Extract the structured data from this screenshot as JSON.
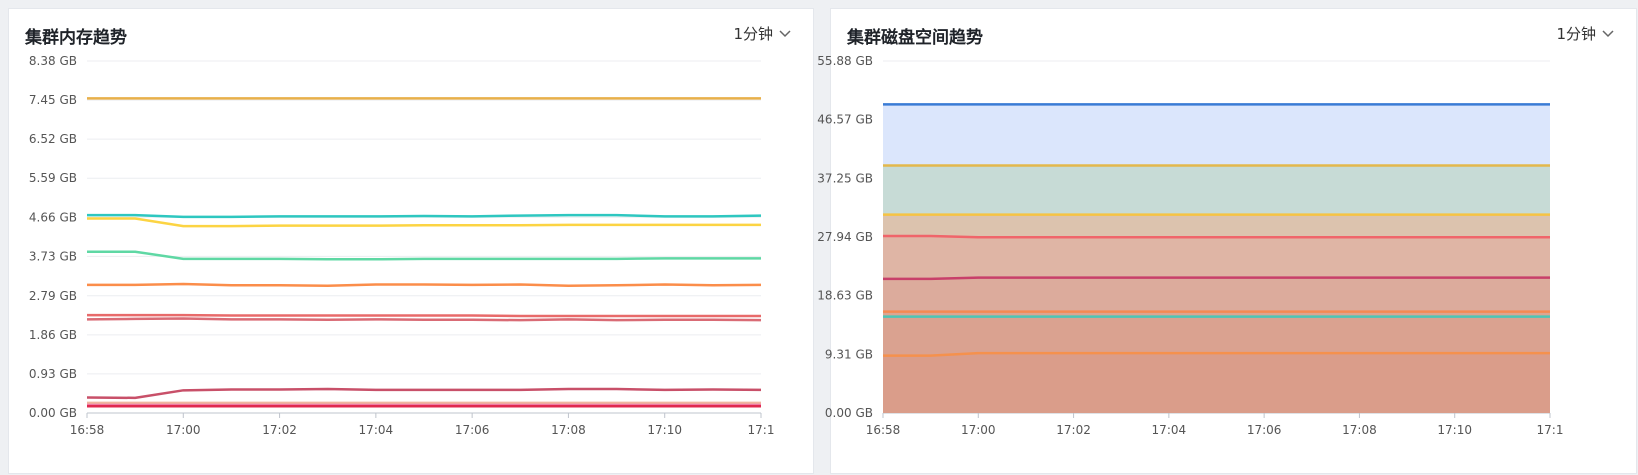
{
  "panels": [
    {
      "title": "集群内存趋势",
      "interval": "1分钟"
    },
    {
      "title": "集群磁盘空间趋势",
      "interval": "1分钟"
    }
  ],
  "chart_data": [
    {
      "type": "line",
      "title": "集群内存趋势",
      "ylim": [
        0,
        8.38
      ],
      "y_ticks": [
        "0.00 GB",
        "0.93 GB",
        "1.86 GB",
        "2.79 GB",
        "3.73 GB",
        "4.66 GB",
        "5.59 GB",
        "6.52 GB",
        "7.45 GB",
        "8.38 GB"
      ],
      "x_ticks": [
        "16:58",
        "17:00",
        "17:02",
        "17:04",
        "17:06",
        "17:08",
        "17:10",
        "17:1"
      ],
      "x_minutes": [
        0,
        1,
        2,
        3,
        4,
        5,
        6,
        7,
        8,
        9,
        10,
        11,
        12,
        13,
        14
      ],
      "grid": true,
      "series": [
        {
          "color": "#e8b04a",
          "values": [
            7.49,
            7.49,
            7.49,
            7.49,
            7.49,
            7.49,
            7.49,
            7.49,
            7.49,
            7.49,
            7.49,
            7.49,
            7.49,
            7.49,
            7.49
          ]
        },
        {
          "color": "#2ec7c0",
          "values": [
            4.71,
            4.71,
            4.67,
            4.67,
            4.68,
            4.68,
            4.68,
            4.69,
            4.68,
            4.7,
            4.71,
            4.71,
            4.68,
            4.68,
            4.7
          ]
        },
        {
          "color": "#fcd443",
          "values": [
            4.63,
            4.63,
            4.45,
            4.45,
            4.46,
            4.46,
            4.46,
            4.47,
            4.47,
            4.47,
            4.48,
            4.48,
            4.48,
            4.48,
            4.48
          ]
        },
        {
          "color": "#5fd8a4",
          "values": [
            3.84,
            3.84,
            3.67,
            3.67,
            3.67,
            3.66,
            3.66,
            3.67,
            3.67,
            3.67,
            3.67,
            3.67,
            3.68,
            3.68,
            3.68
          ]
        },
        {
          "color": "#fb8d4a",
          "values": [
            3.05,
            3.05,
            3.07,
            3.04,
            3.04,
            3.03,
            3.06,
            3.06,
            3.05,
            3.06,
            3.03,
            3.04,
            3.06,
            3.04,
            3.05
          ]
        },
        {
          "color": "#e86a6a",
          "values": [
            2.33,
            2.33,
            2.33,
            2.32,
            2.32,
            2.32,
            2.32,
            2.32,
            2.32,
            2.31,
            2.31,
            2.31,
            2.31,
            2.31,
            2.31
          ]
        },
        {
          "color": "#d96b75",
          "values": [
            2.23,
            2.24,
            2.25,
            2.23,
            2.23,
            2.22,
            2.23,
            2.22,
            2.22,
            2.21,
            2.23,
            2.21,
            2.22,
            2.22,
            2.21
          ]
        },
        {
          "color": "#c85069",
          "values": [
            0.37,
            0.36,
            0.54,
            0.56,
            0.56,
            0.57,
            0.55,
            0.55,
            0.55,
            0.55,
            0.57,
            0.57,
            0.55,
            0.56,
            0.55
          ]
        },
        {
          "color": "#f0b6a0",
          "values": [
            0.24,
            0.24,
            0.24,
            0.24,
            0.24,
            0.24,
            0.24,
            0.24,
            0.24,
            0.24,
            0.24,
            0.24,
            0.24,
            0.24,
            0.24
          ]
        },
        {
          "color": "#f07ba6",
          "values": [
            0.19,
            0.19,
            0.19,
            0.19,
            0.19,
            0.19,
            0.19,
            0.19,
            0.19,
            0.19,
            0.19,
            0.19,
            0.19,
            0.19,
            0.19
          ]
        },
        {
          "color": "#e0294f",
          "values": [
            0.16,
            0.16,
            0.16,
            0.16,
            0.16,
            0.16,
            0.16,
            0.16,
            0.16,
            0.16,
            0.16,
            0.16,
            0.16,
            0.16,
            0.16
          ]
        }
      ]
    },
    {
      "type": "area",
      "title": "集群磁盘空间趋势",
      "ylim": [
        0,
        55.88
      ],
      "y_ticks": [
        "0.00 GB",
        "9.31 GB",
        "18.63 GB",
        "27.94 GB",
        "37.25 GB",
        "46.57 GB",
        "55.88 GB"
      ],
      "x_ticks": [
        "16:58",
        "17:00",
        "17:02",
        "17:04",
        "17:06",
        "17:08",
        "17:10",
        "17:1"
      ],
      "x_minutes": [
        0,
        1,
        2,
        3,
        4,
        5,
        6,
        7,
        8,
        9,
        10,
        11,
        12,
        13,
        14
      ],
      "grid": true,
      "series": [
        {
          "color": "#3a7bd5",
          "fill": "#dbe6fc",
          "values": [
            49.0,
            49.0,
            49.0,
            49.0,
            49.0,
            49.0,
            49.0,
            49.0,
            49.0,
            49.0,
            49.0,
            49.0,
            49.0,
            49.0,
            49.0
          ]
        },
        {
          "color": "#e3b84c",
          "fill": "#c7dbd6",
          "values": [
            39.3,
            39.3,
            39.3,
            39.3,
            39.3,
            39.3,
            39.3,
            39.3,
            39.3,
            39.3,
            39.3,
            39.3,
            39.3,
            39.3,
            39.3
          ]
        },
        {
          "color": "#f6c343",
          "fill": "#dcc3ae",
          "values": [
            31.5,
            31.5,
            31.5,
            31.5,
            31.5,
            31.5,
            31.5,
            31.5,
            31.5,
            31.5,
            31.5,
            31.5,
            31.5,
            31.5,
            31.5
          ]
        },
        {
          "color": "#f0656a",
          "fill": "#dfb5a5",
          "values": [
            28.1,
            28.1,
            27.9,
            27.9,
            27.9,
            27.9,
            27.9,
            27.9,
            27.9,
            27.9,
            27.9,
            27.9,
            27.9,
            27.9,
            27.9
          ]
        },
        {
          "color": "#c8406a",
          "fill": "#dcab9c",
          "values": [
            21.3,
            21.3,
            21.5,
            21.5,
            21.5,
            21.5,
            21.5,
            21.5,
            21.5,
            21.5,
            21.5,
            21.5,
            21.5,
            21.5,
            21.5
          ]
        },
        {
          "color": "#f58a52",
          "fill": "#dca592",
          "values": [
            16.1,
            16.1,
            16.1,
            16.1,
            16.1,
            16.1,
            16.1,
            16.1,
            16.1,
            16.1,
            16.1,
            16.1,
            16.1,
            16.1,
            16.1
          ]
        },
        {
          "color": "#4ec5b6",
          "fill": "#daa290",
          "values": [
            15.3,
            15.3,
            15.3,
            15.3,
            15.3,
            15.3,
            15.3,
            15.3,
            15.3,
            15.3,
            15.3,
            15.3,
            15.3,
            15.3,
            15.3
          ]
        },
        {
          "color": "#f5914d",
          "fill": "#da9d8a",
          "values": [
            9.1,
            9.1,
            9.5,
            9.5,
            9.5,
            9.5,
            9.5,
            9.5,
            9.5,
            9.5,
            9.5,
            9.5,
            9.5,
            9.5,
            9.5
          ]
        }
      ]
    }
  ]
}
